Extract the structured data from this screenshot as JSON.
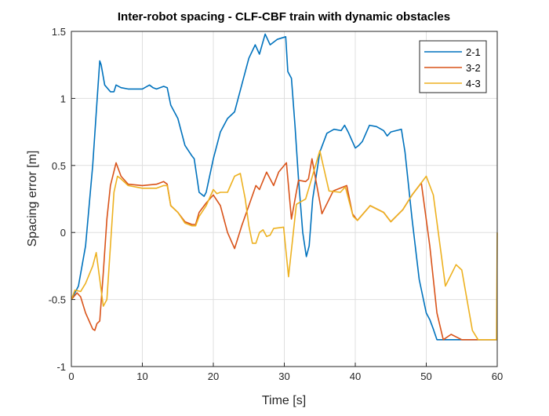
{
  "chart_data": {
    "type": "line",
    "title": "Inter-robot spacing - CLF-CBF train with dynamic obstacles",
    "xlabel": "Time [s]",
    "ylabel": "Spacing error [m]",
    "xlim": [
      0,
      60
    ],
    "ylim": [
      -1,
      1.5
    ],
    "xticks": [
      0,
      10,
      20,
      30,
      40,
      50,
      60
    ],
    "yticks": [
      -1,
      -0.5,
      0,
      0.5,
      1,
      1.5
    ],
    "xtick_labels": [
      "0",
      "10",
      "20",
      "30",
      "40",
      "50",
      "60"
    ],
    "ytick_labels": [
      "-1",
      "-0.5",
      "0",
      "0.5",
      "1",
      "1.5"
    ],
    "grid": true,
    "legend_position": "top-right",
    "series": [
      {
        "name": "2-1",
        "color": "#0072BD",
        "points": [
          [
            0,
            -0.5
          ],
          [
            1,
            -0.4
          ],
          [
            2,
            -0.1
          ],
          [
            3,
            0.5
          ],
          [
            3.7,
            1.05
          ],
          [
            4,
            1.28
          ],
          [
            4.2,
            1.25
          ],
          [
            4.7,
            1.1
          ],
          [
            5.5,
            1.05
          ],
          [
            6,
            1.05
          ],
          [
            6.3,
            1.1
          ],
          [
            7,
            1.08
          ],
          [
            8,
            1.07
          ],
          [
            10,
            1.07
          ],
          [
            11,
            1.1
          ],
          [
            11.5,
            1.08
          ],
          [
            12,
            1.07
          ],
          [
            13,
            1.09
          ],
          [
            13.5,
            1.08
          ],
          [
            14,
            0.95
          ],
          [
            15,
            0.85
          ],
          [
            16,
            0.65
          ],
          [
            17,
            0.57
          ],
          [
            17.3,
            0.55
          ],
          [
            18,
            0.3
          ],
          [
            18.7,
            0.27
          ],
          [
            19,
            0.3
          ],
          [
            20,
            0.55
          ],
          [
            21,
            0.75
          ],
          [
            22,
            0.85
          ],
          [
            23,
            0.9
          ],
          [
            24,
            1.1
          ],
          [
            25,
            1.3
          ],
          [
            25.9,
            1.4
          ],
          [
            26.5,
            1.33
          ],
          [
            27.3,
            1.48
          ],
          [
            28,
            1.4
          ],
          [
            29,
            1.44
          ],
          [
            30.2,
            1.46
          ],
          [
            30.5,
            1.2
          ],
          [
            31,
            1.15
          ],
          [
            31.5,
            0.8
          ],
          [
            32,
            0.4
          ],
          [
            32.6,
            0.0
          ],
          [
            33.1,
            -0.18
          ],
          [
            33.5,
            -0.1
          ],
          [
            34,
            0.25
          ],
          [
            35,
            0.6
          ],
          [
            36,
            0.74
          ],
          [
            37,
            0.77
          ],
          [
            38,
            0.76
          ],
          [
            38.5,
            0.8
          ],
          [
            39,
            0.75
          ],
          [
            40,
            0.63
          ],
          [
            40.5,
            0.65
          ],
          [
            41,
            0.68
          ],
          [
            42,
            0.8
          ],
          [
            43,
            0.79
          ],
          [
            44,
            0.76
          ],
          [
            44.5,
            0.72
          ],
          [
            45,
            0.75
          ],
          [
            46.5,
            0.77
          ],
          [
            47,
            0.6
          ],
          [
            48,
            0.1
          ],
          [
            49,
            -0.35
          ],
          [
            50,
            -0.6
          ],
          [
            50.5,
            -0.65
          ],
          [
            51,
            -0.72
          ],
          [
            51.5,
            -0.8
          ],
          [
            60,
            -0.8
          ]
        ]
      },
      {
        "name": "3-2",
        "color": "#D95319",
        "points": [
          [
            0,
            -0.5
          ],
          [
            0.8,
            -0.45
          ],
          [
            1.3,
            -0.48
          ],
          [
            2,
            -0.6
          ],
          [
            3,
            -0.72
          ],
          [
            3.3,
            -0.73
          ],
          [
            3.6,
            -0.68
          ],
          [
            4,
            -0.66
          ],
          [
            4.5,
            -0.3
          ],
          [
            5,
            0.1
          ],
          [
            5.5,
            0.35
          ],
          [
            6.3,
            0.52
          ],
          [
            7,
            0.42
          ],
          [
            8,
            0.36
          ],
          [
            10,
            0.35
          ],
          [
            12,
            0.36
          ],
          [
            13,
            0.38
          ],
          [
            13.5,
            0.36
          ],
          [
            14,
            0.2
          ],
          [
            15,
            0.15
          ],
          [
            16,
            0.08
          ],
          [
            17,
            0.06
          ],
          [
            17.5,
            0.06
          ],
          [
            18,
            0.15
          ],
          [
            19,
            0.22
          ],
          [
            20,
            0.28
          ],
          [
            21,
            0.2
          ],
          [
            22,
            0.0
          ],
          [
            23,
            -0.12
          ],
          [
            24,
            0.05
          ],
          [
            25,
            0.2
          ],
          [
            26,
            0.35
          ],
          [
            26.5,
            0.32
          ],
          [
            27.5,
            0.45
          ],
          [
            28.5,
            0.35
          ],
          [
            29.2,
            0.45
          ],
          [
            30.3,
            0.52
          ],
          [
            31,
            0.1
          ],
          [
            32,
            0.39
          ],
          [
            33,
            0.38
          ],
          [
            33.4,
            0.4
          ],
          [
            33.9,
            0.55
          ],
          [
            35.3,
            0.14
          ],
          [
            36.9,
            0.31
          ],
          [
            38.8,
            0.35
          ],
          [
            39.6,
            0.14
          ],
          [
            40.3,
            0.09
          ],
          [
            42.1,
            0.2
          ],
          [
            44,
            0.15
          ],
          [
            45,
            0.08
          ],
          [
            46.7,
            0.17
          ],
          [
            48,
            0.28
          ],
          [
            49.3,
            0.37
          ],
          [
            50.5,
            -0.1
          ],
          [
            51.5,
            -0.6
          ],
          [
            52.4,
            -0.8
          ],
          [
            53.5,
            -0.76
          ],
          [
            55,
            -0.8
          ],
          [
            60,
            -0.8
          ]
        ]
      },
      {
        "name": "4-3",
        "color": "#EDB120",
        "points": [
          [
            0,
            -0.5
          ],
          [
            0.5,
            -0.43
          ],
          [
            1.3,
            -0.44
          ],
          [
            2,
            -0.38
          ],
          [
            3,
            -0.25
          ],
          [
            3.5,
            -0.15
          ],
          [
            4,
            -0.35
          ],
          [
            4.5,
            -0.55
          ],
          [
            5,
            -0.5
          ],
          [
            5.5,
            -0.1
          ],
          [
            6,
            0.3
          ],
          [
            6.5,
            0.42
          ],
          [
            7,
            0.4
          ],
          [
            8,
            0.35
          ],
          [
            10,
            0.33
          ],
          [
            12,
            0.33
          ],
          [
            13,
            0.35
          ],
          [
            13.5,
            0.35
          ],
          [
            14,
            0.2
          ],
          [
            15,
            0.15
          ],
          [
            16,
            0.07
          ],
          [
            17,
            0.05
          ],
          [
            17.5,
            0.05
          ],
          [
            18,
            0.12
          ],
          [
            19,
            0.2
          ],
          [
            20,
            0.32
          ],
          [
            20.5,
            0.29
          ],
          [
            21,
            0.3
          ],
          [
            22,
            0.3
          ],
          [
            23,
            0.42
          ],
          [
            23.8,
            0.44
          ],
          [
            24.5,
            0.25
          ],
          [
            25,
            0.05
          ],
          [
            25.5,
            -0.08
          ],
          [
            26,
            -0.08
          ],
          [
            26.5,
            0.0
          ],
          [
            27,
            0.02
          ],
          [
            27.5,
            -0.03
          ],
          [
            28,
            -0.02
          ],
          [
            28.5,
            0.03
          ],
          [
            29.9,
            0.04
          ],
          [
            30.6,
            -0.33
          ],
          [
            31.7,
            0.21
          ],
          [
            33,
            0.25
          ],
          [
            33.9,
            0.41
          ],
          [
            35,
            0.61
          ],
          [
            36.3,
            0.31
          ],
          [
            37.9,
            0.3
          ],
          [
            38.6,
            0.34
          ],
          [
            39.7,
            0.12
          ],
          [
            40.3,
            0.09
          ],
          [
            42.1,
            0.2
          ],
          [
            44,
            0.15
          ],
          [
            45,
            0.08
          ],
          [
            46.7,
            0.17
          ],
          [
            48,
            0.28
          ],
          [
            50,
            0.42
          ],
          [
            51,
            0.28
          ],
          [
            52.2,
            -0.2
          ],
          [
            52.7,
            -0.4
          ],
          [
            54.2,
            -0.24
          ],
          [
            55,
            -0.28
          ],
          [
            56.5,
            -0.73
          ],
          [
            57.3,
            -0.8
          ],
          [
            59.9,
            -0.8
          ],
          [
            60,
            0.0
          ]
        ]
      }
    ]
  }
}
